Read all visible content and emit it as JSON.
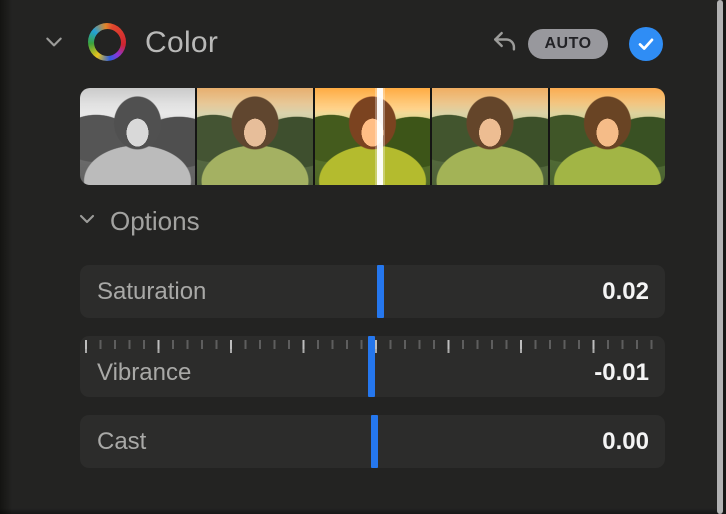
{
  "panel": {
    "title": "Color",
    "auto_button": "AUTO",
    "options_label": "Options"
  },
  "preview_strip": {
    "variant_count": 5,
    "indicator_pct": 51.3
  },
  "sliders": [
    {
      "label": "Saturation",
      "value": "0.02",
      "position_pct": 51.3
    },
    {
      "label": "Vibrance",
      "value": "-0.01",
      "position_pct": 49.9
    },
    {
      "label": "Cast",
      "value": "0.00",
      "position_pct": 50.3
    }
  ],
  "colors": {
    "accent_blue": "#2577ee",
    "check_blue": "#2f8df5",
    "auto_pill_bg": "#98989d"
  },
  "icons": {
    "header_chevron": "chevron-down-icon",
    "color_wheel": "color-wheel-icon",
    "undo": "undo-icon",
    "auto": "auto-button",
    "checkmark": "checkmark-icon",
    "options_chevron": "chevron-down-icon"
  }
}
